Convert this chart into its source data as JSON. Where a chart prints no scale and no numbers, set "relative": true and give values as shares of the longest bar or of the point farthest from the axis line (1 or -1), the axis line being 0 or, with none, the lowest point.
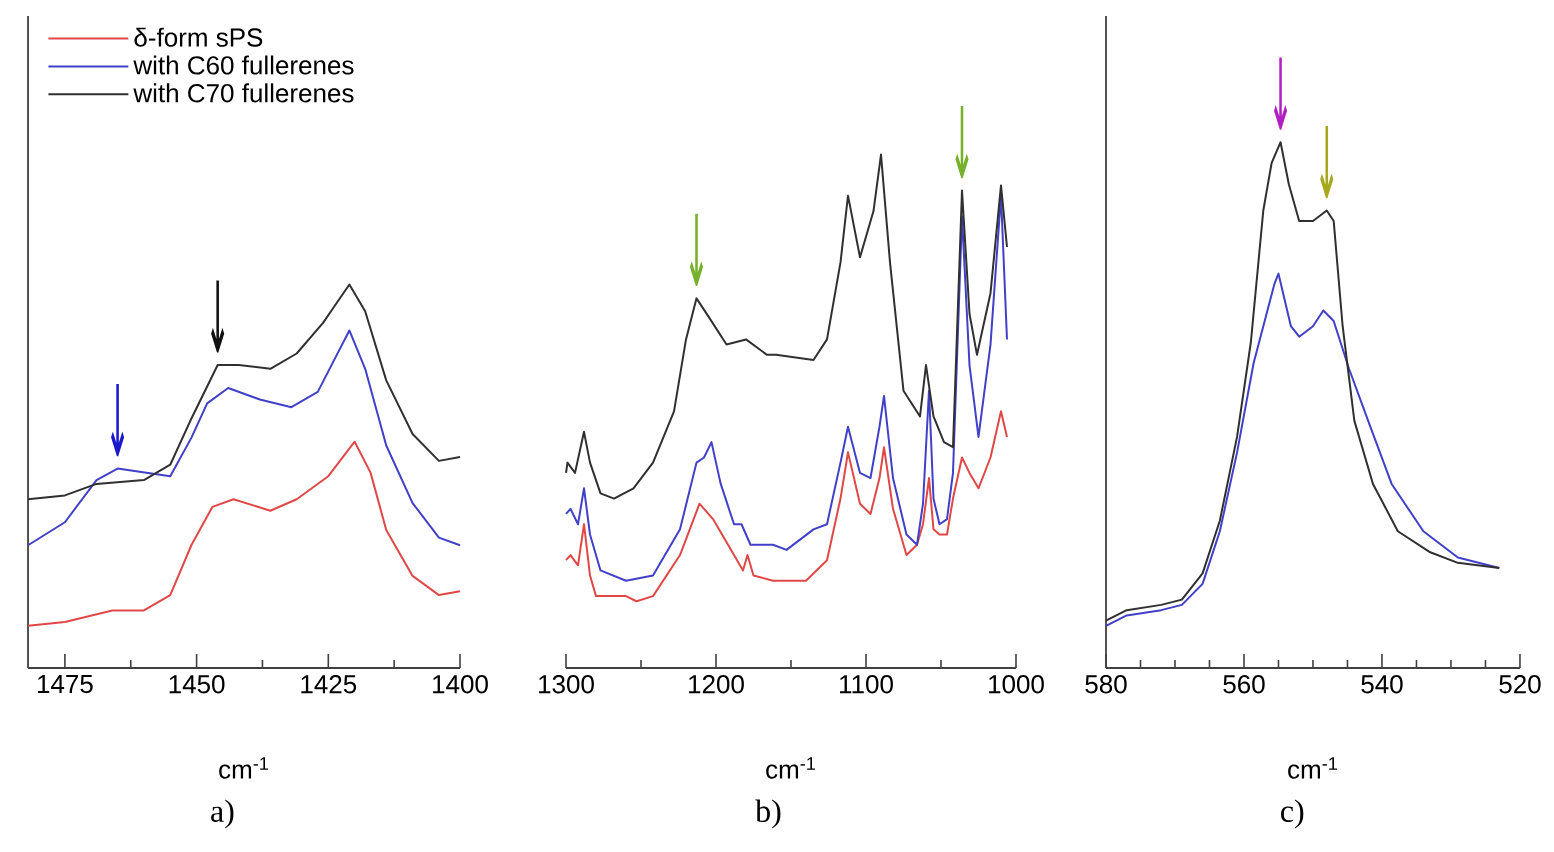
{
  "chart_data": [
    {
      "type": "line",
      "relative": true,
      "xlim": [
        1482,
        1400
      ],
      "xticks": [
        1475,
        1450,
        1425,
        1400
      ],
      "xlabel": "cm$^{-1}$",
      "legend": "top left",
      "annotations": [
        "a)",
        {
          "text": "↓",
          "x": 1465,
          "y": 0.52
        },
        {
          "text": "↓",
          "x": 1446,
          "y": 0.79
        }
      ],
      "series": [
        {
          "name": "δ-form sPS",
          "color": "#e04848",
          "x": [
            1482,
            1475,
            1466,
            1460,
            1455,
            1451,
            1447,
            1443,
            1436,
            1431,
            1425,
            1420,
            1417,
            1414,
            1409,
            1404,
            1400
          ],
          "values": [
            0.11,
            0.12,
            0.15,
            0.15,
            0.19,
            0.32,
            0.42,
            0.44,
            0.41,
            0.44,
            0.5,
            0.59,
            0.51,
            0.36,
            0.24,
            0.19,
            0.2
          ]
        },
        {
          "name": "with C60 fullerenes",
          "color": "#4040c8",
          "x": [
            1482,
            1475,
            1469,
            1465,
            1460,
            1455,
            1451,
            1448,
            1444,
            1438,
            1432,
            1427,
            1424,
            1421,
            1418,
            1414,
            1409,
            1404,
            1400
          ],
          "values": [
            0.32,
            0.38,
            0.49,
            0.52,
            0.51,
            0.5,
            0.6,
            0.69,
            0.73,
            0.7,
            0.68,
            0.72,
            0.8,
            0.88,
            0.78,
            0.58,
            0.43,
            0.34,
            0.32
          ]
        },
        {
          "name": "with C70 fullerenes",
          "color": "#303030",
          "x": [
            1482,
            1475,
            1469,
            1460,
            1455,
            1451,
            1446,
            1442,
            1436,
            1431,
            1426,
            1424,
            1421,
            1418,
            1414,
            1409,
            1404,
            1400
          ],
          "values": [
            0.44,
            0.45,
            0.48,
            0.49,
            0.53,
            0.65,
            0.79,
            0.79,
            0.78,
            0.82,
            0.9,
            0.94,
            1.0,
            0.93,
            0.75,
            0.61,
            0.54,
            0.55
          ]
        }
      ]
    },
    {
      "type": "line",
      "relative": true,
      "xlim": [
        1300,
        1000
      ],
      "xticks": [
        1300,
        1200,
        1100,
        1000
      ],
      "xlabel": "cm$^{-1}$",
      "annotations": [
        "b)",
        {
          "text": "↓",
          "x": 1213,
          "y": 0.72
        },
        {
          "text": "↓",
          "x": 1036,
          "y": 0.93
        }
      ],
      "series": [
        {
          "color": "#e04848",
          "x": [
            1300,
            1297,
            1292,
            1288,
            1284,
            1280,
            1268,
            1260,
            1253,
            1242,
            1224,
            1211,
            1202,
            1188,
            1182,
            1179,
            1175,
            1162,
            1140,
            1126,
            1117,
            1112,
            1104,
            1097,
            1091,
            1088,
            1082,
            1073,
            1066,
            1062,
            1058,
            1055,
            1051,
            1046,
            1042,
            1036,
            1031,
            1025,
            1017,
            1010,
            1006
          ],
          "values": [
            0.21,
            0.22,
            0.2,
            0.28,
            0.18,
            0.14,
            0.14,
            0.14,
            0.13,
            0.14,
            0.22,
            0.32,
            0.29,
            0.22,
            0.19,
            0.22,
            0.18,
            0.17,
            0.17,
            0.21,
            0.33,
            0.42,
            0.32,
            0.3,
            0.37,
            0.43,
            0.31,
            0.22,
            0.24,
            0.28,
            0.37,
            0.27,
            0.26,
            0.26,
            0.33,
            0.41,
            0.38,
            0.35,
            0.41,
            0.5,
            0.45
          ]
        },
        {
          "color": "#4040c8",
          "x": [
            1300,
            1297,
            1292,
            1288,
            1284,
            1277,
            1260,
            1242,
            1224,
            1213,
            1208,
            1203,
            1197,
            1188,
            1183,
            1177,
            1162,
            1153,
            1135,
            1126,
            1117,
            1112,
            1104,
            1097,
            1091,
            1088,
            1082,
            1073,
            1066,
            1062,
            1058,
            1055,
            1051,
            1046,
            1042,
            1036,
            1031,
            1025,
            1017,
            1010,
            1006
          ],
          "values": [
            0.3,
            0.31,
            0.28,
            0.35,
            0.26,
            0.19,
            0.17,
            0.18,
            0.27,
            0.4,
            0.41,
            0.44,
            0.36,
            0.28,
            0.28,
            0.24,
            0.24,
            0.23,
            0.27,
            0.28,
            0.4,
            0.47,
            0.38,
            0.37,
            0.47,
            0.53,
            0.37,
            0.26,
            0.24,
            0.32,
            0.54,
            0.33,
            0.28,
            0.29,
            0.38,
            0.88,
            0.59,
            0.45,
            0.63,
            0.92,
            0.64
          ]
        },
        {
          "color": "#303030",
          "x": [
            1300,
            1299,
            1294,
            1288,
            1284,
            1277,
            1268,
            1255,
            1242,
            1228,
            1220,
            1213,
            1204,
            1193,
            1180,
            1166,
            1160,
            1135,
            1126,
            1117,
            1112,
            1104,
            1095,
            1090,
            1084,
            1075,
            1064,
            1060,
            1055,
            1048,
            1042,
            1036,
            1031,
            1026,
            1017,
            1010,
            1006
          ],
          "values": [
            0.38,
            0.4,
            0.38,
            0.46,
            0.4,
            0.34,
            0.33,
            0.35,
            0.4,
            0.5,
            0.64,
            0.72,
            0.68,
            0.63,
            0.64,
            0.61,
            0.61,
            0.6,
            0.64,
            0.79,
            0.92,
            0.8,
            0.89,
            1.0,
            0.79,
            0.54,
            0.49,
            0.59,
            0.49,
            0.44,
            0.43,
            0.93,
            0.69,
            0.61,
            0.73,
            0.94,
            0.82
          ]
        }
      ]
    },
    {
      "type": "line",
      "relative": true,
      "xlim": [
        580,
        520
      ],
      "xticks": [
        580,
        560,
        540,
        520
      ],
      "xlabel": "cm$^{-1}$",
      "annotations": [
        "c)",
        {
          "text": "↓",
          "x": 554.7,
          "y": 1.0
        },
        {
          "text": "↓",
          "x": 548,
          "y": 0.87
        }
      ],
      "series": [
        {
          "color": "#4040c8",
          "x": [
            580,
            577,
            572,
            569,
            566,
            563.5,
            561,
            558.6,
            556.8,
            555.6,
            555,
            554.1,
            553.2,
            552,
            550,
            548.5,
            547,
            544.8,
            542,
            538.6,
            534,
            529,
            523
          ],
          "values": [
            0.08,
            0.1,
            0.11,
            0.12,
            0.16,
            0.26,
            0.41,
            0.58,
            0.67,
            0.73,
            0.75,
            0.7,
            0.65,
            0.63,
            0.65,
            0.68,
            0.66,
            0.57,
            0.47,
            0.35,
            0.26,
            0.21,
            0.19
          ]
        },
        {
          "color": "#303030",
          "x": [
            580,
            577,
            572,
            569,
            566,
            563.5,
            561,
            559,
            557.2,
            556,
            554.7,
            553.5,
            552,
            550,
            548,
            547,
            545.7,
            544,
            541.3,
            537.7,
            533,
            529,
            523
          ],
          "values": [
            0.09,
            0.11,
            0.12,
            0.13,
            0.18,
            0.28,
            0.44,
            0.62,
            0.87,
            0.96,
            1.0,
            0.92,
            0.85,
            0.85,
            0.87,
            0.85,
            0.65,
            0.47,
            0.35,
            0.26,
            0.22,
            0.2,
            0.19
          ]
        }
      ]
    }
  ]
}
